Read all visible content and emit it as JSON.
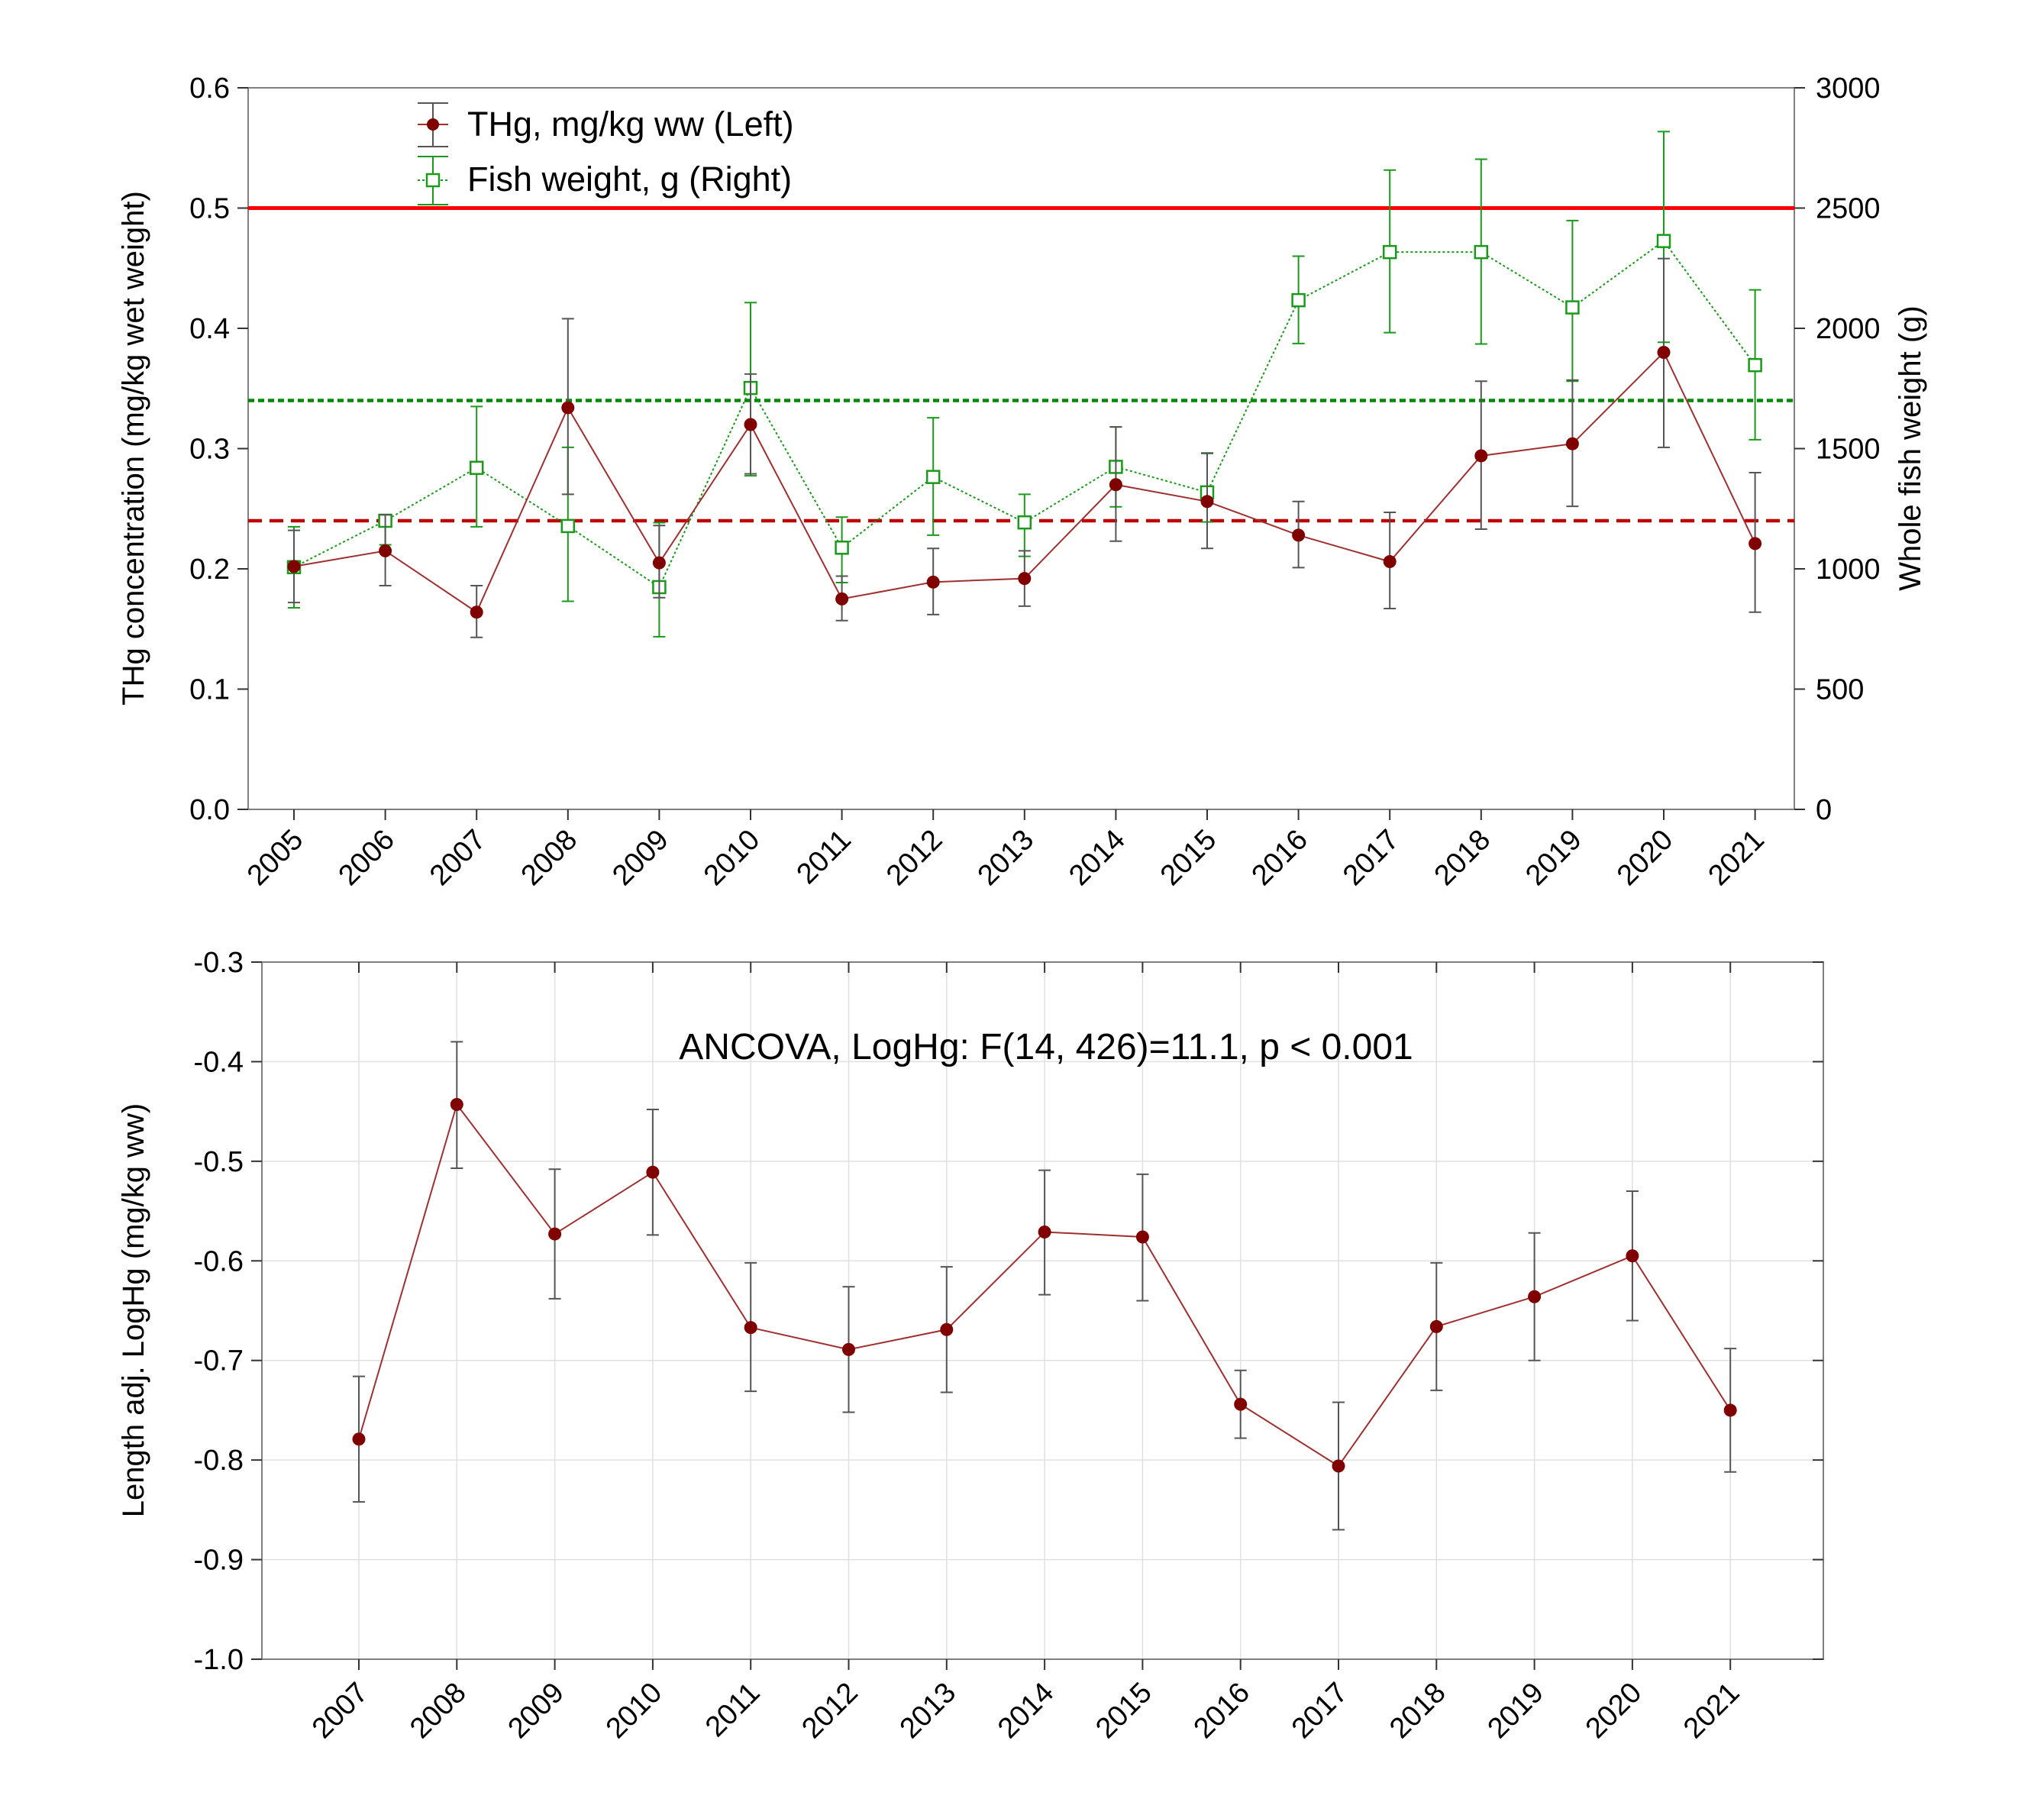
{
  "colors": {
    "thg": "#800000",
    "thg_line": "#a03030",
    "weight": "#1a9a1a",
    "limit_red": "#ff0000",
    "ref_green": "#008800",
    "ref_darkred": "#c00000",
    "grid": "#e0e0e0",
    "error_bar": "#555555"
  },
  "chart_data": [
    {
      "type": "line",
      "title": "",
      "xlabel": "",
      "ylabel": "THg concentration (mg/kg wet weight)",
      "ylabel_right": "Whole fish weight (g)",
      "ylim": [
        0,
        0.6
      ],
      "ylim_right": [
        0,
        3000
      ],
      "grid": false,
      "legend_position": "top-left",
      "y_ticks": [
        "0.0",
        "0.1",
        "0.2",
        "0.3",
        "0.4",
        "0.5",
        "0.6"
      ],
      "y_ticks_right": [
        "0",
        "500",
        "1000",
        "1500",
        "2000",
        "2500",
        "3000"
      ],
      "categories": [
        "2005",
        "2006",
        "2007",
        "2008",
        "2009",
        "2010",
        "2011",
        "2012",
        "2013",
        "2014",
        "2015",
        "2016",
        "2017",
        "2018",
        "2019",
        "2020",
        "2021"
      ],
      "series": [
        {
          "name": "THg, mg/kg ww (Left)",
          "axis": "left",
          "values": [
            0.202,
            0.215,
            0.164,
            0.334,
            0.205,
            0.32,
            0.175,
            0.189,
            0.192,
            0.27,
            0.256,
            0.228,
            0.206,
            0.294,
            0.304,
            0.38,
            0.221
          ],
          "lower": [
            0.172,
            0.186,
            0.143,
            0.262,
            0.176,
            0.279,
            0.157,
            0.162,
            0.169,
            0.223,
            0.217,
            0.201,
            0.167,
            0.233,
            0.252,
            0.301,
            0.164
          ],
          "upper": [
            0.232,
            0.245,
            0.186,
            0.408,
            0.236,
            0.362,
            0.194,
            0.217,
            0.215,
            0.318,
            0.296,
            0.256,
            0.247,
            0.356,
            0.357,
            0.458,
            0.28
          ]
        },
        {
          "name": "Fish weight, g (Right)",
          "axis": "right",
          "values": [
            1007,
            1200,
            1420,
            1178,
            924,
            1752,
            1088,
            1382,
            1193,
            1424,
            1318,
            2117,
            2317,
            2317,
            2087,
            2363,
            1847
          ],
          "lower": [
            838,
            1100,
            1175,
            865,
            718,
            1387,
            943,
            1140,
            1052,
            1258,
            1195,
            1937,
            1982,
            1935,
            1780,
            1942,
            1537
          ],
          "upper": [
            1175,
            1225,
            1675,
            1505,
            1192,
            2107,
            1215,
            1628,
            1310,
            1590,
            1482,
            2300,
            2658,
            2703,
            2448,
            2818,
            2160
          ]
        }
      ],
      "reference_lines": [
        {
          "axis": "left",
          "value": 0.5,
          "style": "solid",
          "color": "#ff0000"
        },
        {
          "axis": "left",
          "value": 0.34,
          "style": "dotted",
          "color": "#008800"
        },
        {
          "axis": "left",
          "value": 0.24,
          "style": "dashed",
          "color": "#c00000"
        }
      ]
    },
    {
      "type": "line",
      "title": "",
      "xlabel": "",
      "ylabel": "Length adj. LogHg (mg/kg ww)",
      "ylim": [
        -1.0,
        -0.3
      ],
      "grid": true,
      "y_ticks": [
        "-1.0",
        "-0.9",
        "-0.8",
        "-0.7",
        "-0.6",
        "-0.5",
        "-0.4",
        "-0.3"
      ],
      "categories": [
        "2007",
        "2008",
        "2009",
        "2010",
        "2011",
        "2012",
        "2013",
        "2014",
        "2015",
        "2016",
        "2017",
        "2018",
        "2019",
        "2020",
        "2021"
      ],
      "annotation": "ANCOVA, LogHg: F(14, 426)=11.1, p < 0.001",
      "series": [
        {
          "name": "Length adj. LogHg",
          "values": [
            -0.779,
            -0.443,
            -0.573,
            -0.511,
            -0.667,
            -0.689,
            -0.669,
            -0.571,
            -0.576,
            -0.744,
            -0.806,
            -0.666,
            -0.636,
            -0.595,
            -0.75
          ],
          "lower": [
            -0.842,
            -0.507,
            -0.638,
            -0.574,
            -0.731,
            -0.752,
            -0.732,
            -0.634,
            -0.64,
            -0.778,
            -0.87,
            -0.73,
            -0.7,
            -0.66,
            -0.812
          ],
          "upper": [
            -0.716,
            -0.38,
            -0.508,
            -0.448,
            -0.602,
            -0.626,
            -0.606,
            -0.509,
            -0.513,
            -0.71,
            -0.742,
            -0.602,
            -0.572,
            -0.53,
            -0.688
          ]
        }
      ]
    }
  ]
}
